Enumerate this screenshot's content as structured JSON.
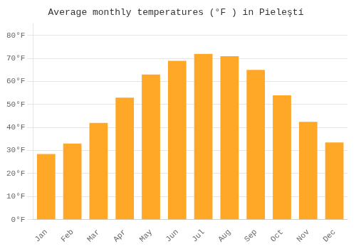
{
  "chart_data": {
    "type": "bar",
    "title": "Average monthly temperatures (°F ) in Pieleştí",
    "categories": [
      "Jan",
      "Feb",
      "Mar",
      "Apr",
      "May",
      "Jun",
      "Jul",
      "Aug",
      "Sep",
      "Oct",
      "Nov",
      "Dec"
    ],
    "values": [
      28.5,
      33.0,
      42.0,
      53.0,
      63.0,
      69.0,
      72.0,
      71.0,
      65.0,
      54.0,
      42.5,
      33.5
    ],
    "color": "#FFA726",
    "ylim": [
      0,
      85
    ],
    "yticks": [
      {
        "value": 0,
        "label": "0°F"
      },
      {
        "value": 10,
        "label": "10°F"
      },
      {
        "value": 20,
        "label": "20°F"
      },
      {
        "value": 30,
        "label": "30°F"
      },
      {
        "value": 40,
        "label": "40°F"
      },
      {
        "value": 50,
        "label": "50°F"
      },
      {
        "value": 60,
        "label": "60°F"
      },
      {
        "value": 70,
        "label": "70°F"
      },
      {
        "value": 80,
        "label": "80°F"
      }
    ],
    "grid": true
  }
}
